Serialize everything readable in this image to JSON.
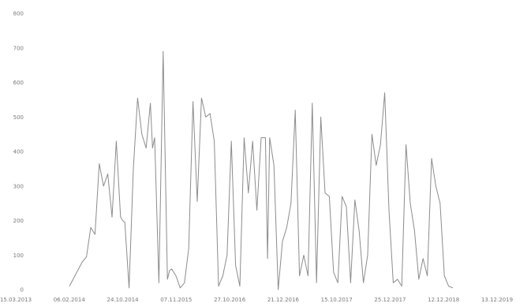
{
  "chart_data": {
    "type": "line",
    "title": "",
    "xlabel": "",
    "ylabel": "",
    "ylim": [
      0,
      800
    ],
    "yticks": [
      "0",
      "100",
      "200",
      "300",
      "400",
      "500",
      "600",
      "700",
      "800"
    ],
    "xticks": [
      "15.03.2013",
      "06.02.2014",
      "24.10.2014",
      "07.11.2015",
      "27.10.2016",
      "21.12.2016",
      "15.10.2017",
      "25.12.2017",
      "12.12.2018",
      "13.12.2019"
    ],
    "grid": false,
    "legend": "none",
    "line_color": "#8c8c8c",
    "series": [
      {
        "x": [
          0,
          3,
          4,
          5,
          6,
          7,
          8,
          9,
          10,
          11,
          12,
          12.5,
          13,
          14,
          15,
          16,
          17,
          18,
          19,
          19.5,
          20,
          21,
          22,
          23,
          23.5,
          24,
          25,
          26,
          27,
          28,
          29,
          30,
          31,
          32,
          33,
          34,
          35,
          36,
          37,
          38,
          39,
          40,
          41,
          42,
          43,
          44,
          45,
          46,
          46.5,
          47,
          47.5,
          48,
          49,
          50,
          51,
          52,
          53,
          54,
          55,
          56,
          57,
          58,
          59,
          60,
          61,
          62,
          63,
          64,
          65,
          66,
          67,
          68,
          69,
          70,
          71,
          72,
          73,
          74,
          75,
          76,
          77,
          78,
          79,
          80,
          81,
          82,
          83,
          84,
          85,
          86,
          87,
          88,
          89,
          90
        ],
        "values": [
          10,
          80,
          95,
          180,
          160,
          365,
          300,
          335,
          210,
          430,
          210,
          200,
          195,
          5,
          350,
          555,
          450,
          410,
          540,
          410,
          440,
          20,
          690,
          30,
          55,
          60,
          40,
          5,
          20,
          120,
          545,
          255,
          555,
          500,
          510,
          430,
          10,
          40,
          100,
          430,
          70,
          10,
          440,
          280,
          430,
          230,
          440,
          440,
          90,
          440,
          400,
          360,
          0,
          140,
          180,
          250,
          520,
          40,
          100,
          40,
          540,
          20,
          500,
          280,
          270,
          50,
          20,
          270,
          240,
          20,
          260,
          170,
          20,
          100,
          450,
          360,
          420,
          570,
          230,
          20,
          30,
          10,
          420,
          250,
          170,
          30,
          90,
          40,
          380,
          300,
          250,
          40,
          10,
          5
        ]
      }
    ]
  }
}
